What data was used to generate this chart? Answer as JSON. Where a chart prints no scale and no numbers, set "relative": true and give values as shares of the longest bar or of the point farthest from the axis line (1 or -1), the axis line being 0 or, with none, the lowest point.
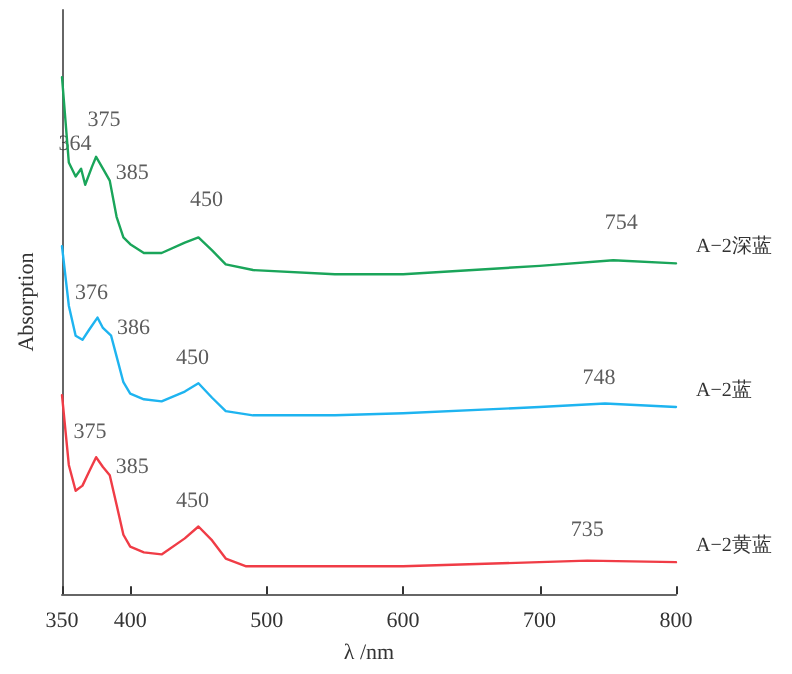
{
  "chart_data": {
    "type": "line",
    "relative": true,
    "xlabel": "λ /nm",
    "ylabel": "Absorption",
    "xlim": [
      350,
      800
    ],
    "xticks": [
      350,
      400,
      500,
      600,
      700,
      800
    ],
    "grid": false,
    "legend": false,
    "marker": "none",
    "line_style": "solid",
    "series": [
      {
        "name": "A−2深蓝",
        "color": "#1aa55a",
        "x": [
          350,
          355,
          360,
          364,
          367,
          372,
          375,
          380,
          385,
          390,
          395,
          400,
          410,
          423,
          440,
          450,
          460,
          470,
          490,
          550,
          600,
          700,
          754,
          800
        ],
        "values": [
          1.0,
          0.835,
          0.808,
          0.823,
          0.792,
          0.827,
          0.846,
          0.823,
          0.8,
          0.73,
          0.69,
          0.677,
          0.66,
          0.66,
          0.68,
          0.69,
          0.665,
          0.638,
          0.627,
          0.619,
          0.619,
          0.635,
          0.646,
          0.64
        ]
      },
      {
        "name": "A−2蓝",
        "color": "#1eb4f0",
        "x": [
          350,
          355,
          360,
          365,
          370,
          376,
          380,
          386,
          390,
          395,
          400,
          410,
          423,
          440,
          450,
          460,
          470,
          490,
          550,
          600,
          700,
          748,
          800
        ],
        "values": [
          0.673,
          0.558,
          0.5,
          0.492,
          0.512,
          0.535,
          0.515,
          0.5,
          0.46,
          0.41,
          0.388,
          0.377,
          0.373,
          0.392,
          0.408,
          0.38,
          0.354,
          0.346,
          0.346,
          0.35,
          0.362,
          0.369,
          0.362
        ]
      },
      {
        "name": "A−2黄蓝",
        "color": "#f03c46",
        "x": [
          350,
          355,
          360,
          365,
          370,
          375,
          380,
          385,
          390,
          395,
          400,
          410,
          423,
          440,
          450,
          460,
          470,
          485,
          550,
          600,
          700,
          735,
          800
        ],
        "values": [
          0.385,
          0.25,
          0.2,
          0.21,
          0.238,
          0.265,
          0.246,
          0.23,
          0.173,
          0.115,
          0.092,
          0.081,
          0.077,
          0.108,
          0.131,
          0.104,
          0.069,
          0.054,
          0.054,
          0.054,
          0.062,
          0.065,
          0.062
        ]
      }
    ],
    "annotations": [
      {
        "text": "364",
        "x": 364,
        "y": 0.823
      },
      {
        "text": "375",
        "x": 375,
        "y": 0.846
      },
      {
        "text": "385",
        "x": 385,
        "y": 0.8
      },
      {
        "text": "450",
        "x": 450,
        "y": 0.69
      },
      {
        "text": "754",
        "x": 754,
        "y": 0.646
      },
      {
        "text": "376",
        "x": 376,
        "y": 0.535
      },
      {
        "text": "386",
        "x": 386,
        "y": 0.5
      },
      {
        "text": "450",
        "x": 450,
        "y": 0.408
      },
      {
        "text": "748",
        "x": 748,
        "y": 0.369
      },
      {
        "text": "375",
        "x": 375,
        "y": 0.265
      },
      {
        "text": "385",
        "x": 385,
        "y": 0.23
      },
      {
        "text": "450",
        "x": 450,
        "y": 0.131
      },
      {
        "text": "735",
        "x": 735,
        "y": 0.065
      }
    ]
  }
}
